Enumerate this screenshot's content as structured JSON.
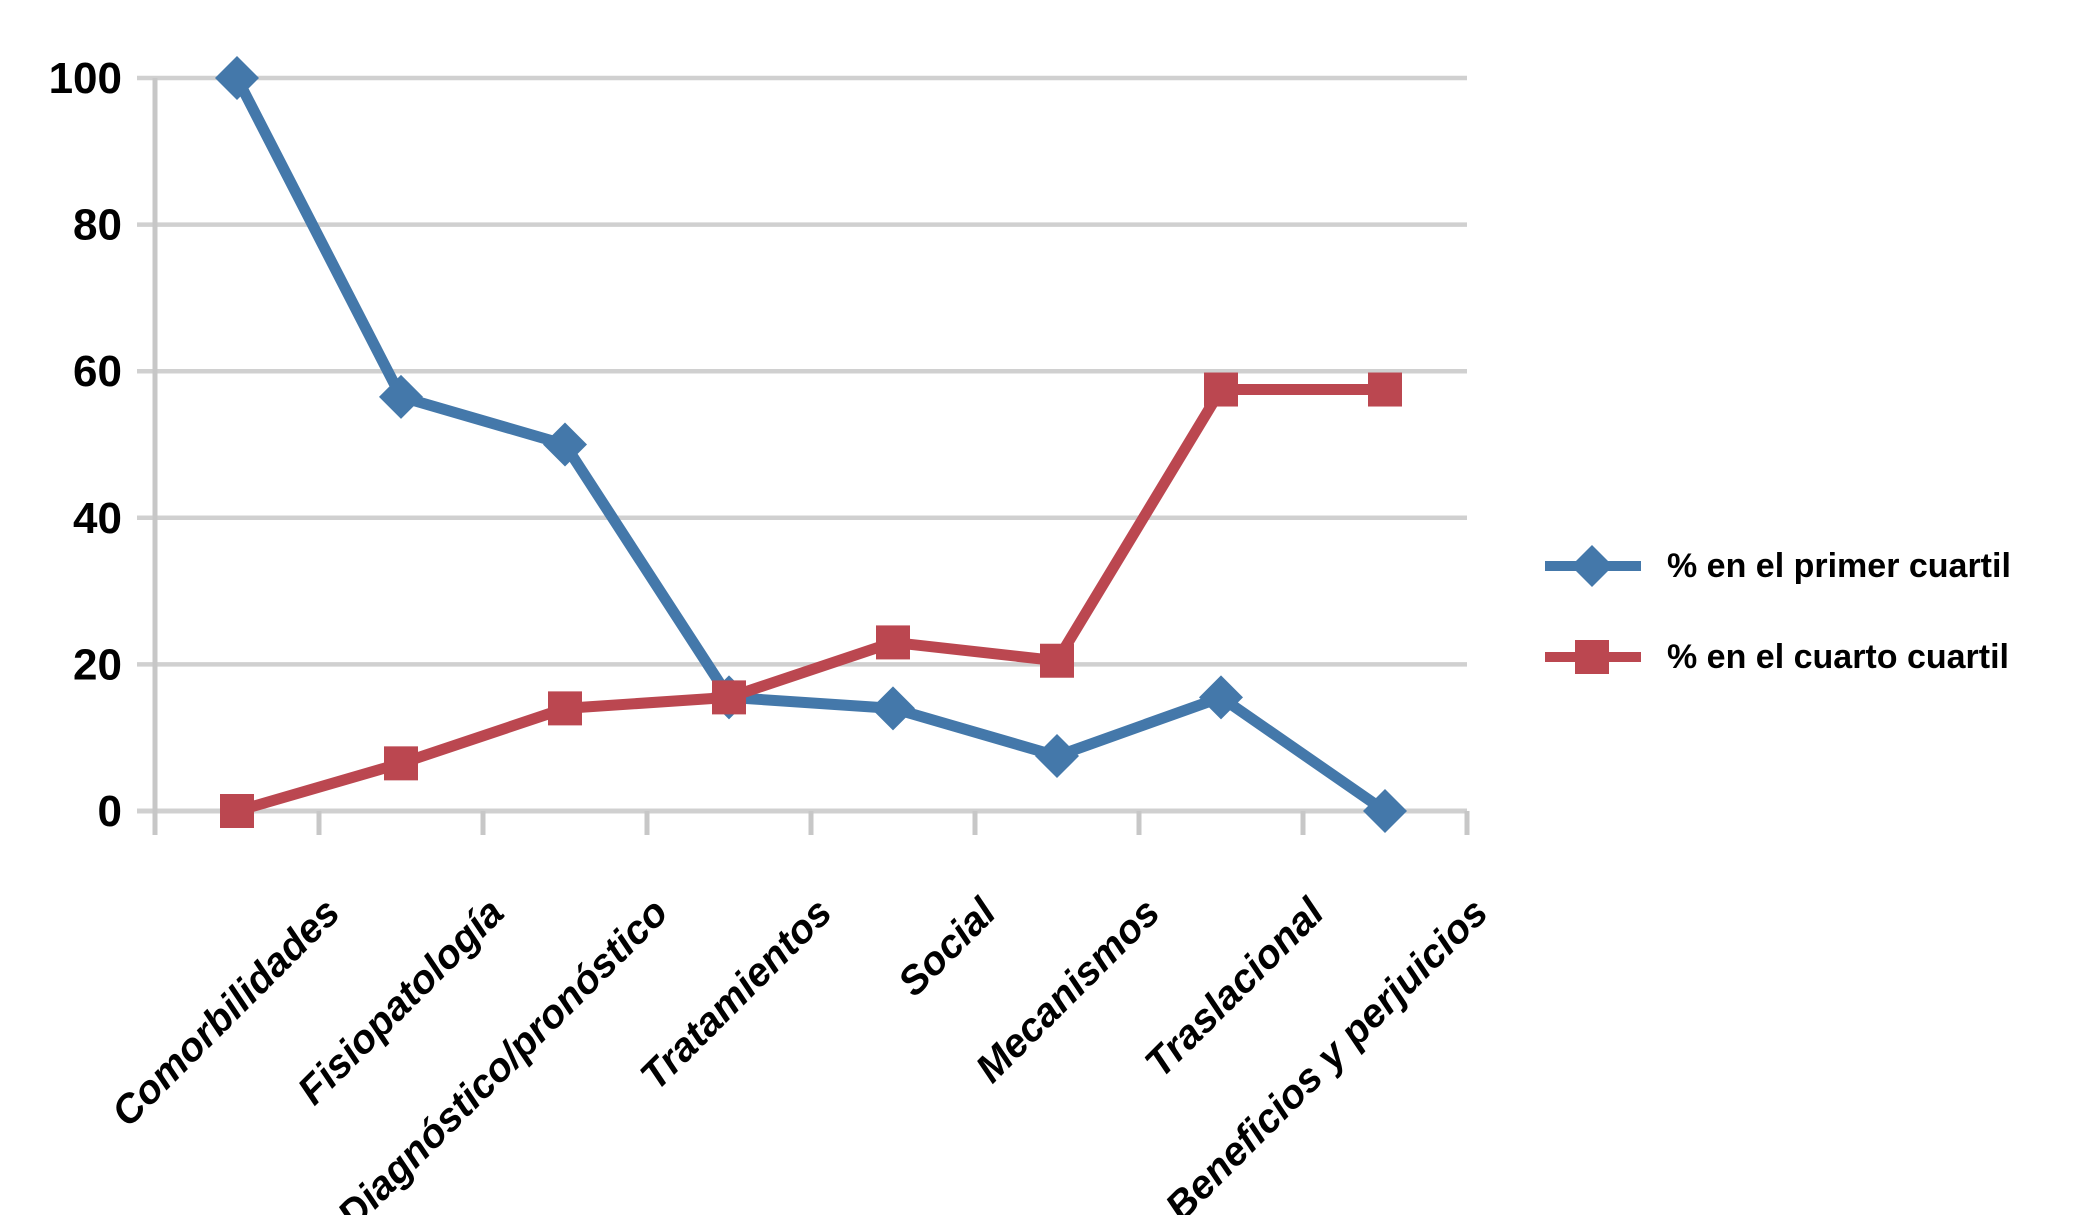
{
  "chart_data": {
    "type": "line",
    "categories": [
      "Comorbilidades",
      "Fisiopatología",
      "Diagnóstico/pronóstico",
      "Tratamientos",
      "Social",
      "Mecanismos",
      "Traslacional",
      "Beneficios y perjuicios"
    ],
    "series": [
      {
        "name": "% en el primer cuartil",
        "marker": "diamond",
        "color": "#4478aa",
        "values": [
          100,
          56.5,
          50,
          15.5,
          14,
          7.5,
          15.5,
          0
        ]
      },
      {
        "name": "% en el cuarto cuartil",
        "marker": "square",
        "color": "#bb4750",
        "values": [
          0,
          6.5,
          14,
          15.5,
          23,
          20.5,
          57.5,
          57.5
        ]
      }
    ],
    "y_ticks": [
      0,
      20,
      40,
      60,
      80,
      100
    ],
    "ylim": [
      0,
      100
    ],
    "grid": "horizontal",
    "legend_position": "right"
  },
  "colors": {
    "gridline": "#d0d0d0",
    "axis": "#c7c7c7",
    "label_text": "#000000",
    "background": "#ffffff"
  }
}
